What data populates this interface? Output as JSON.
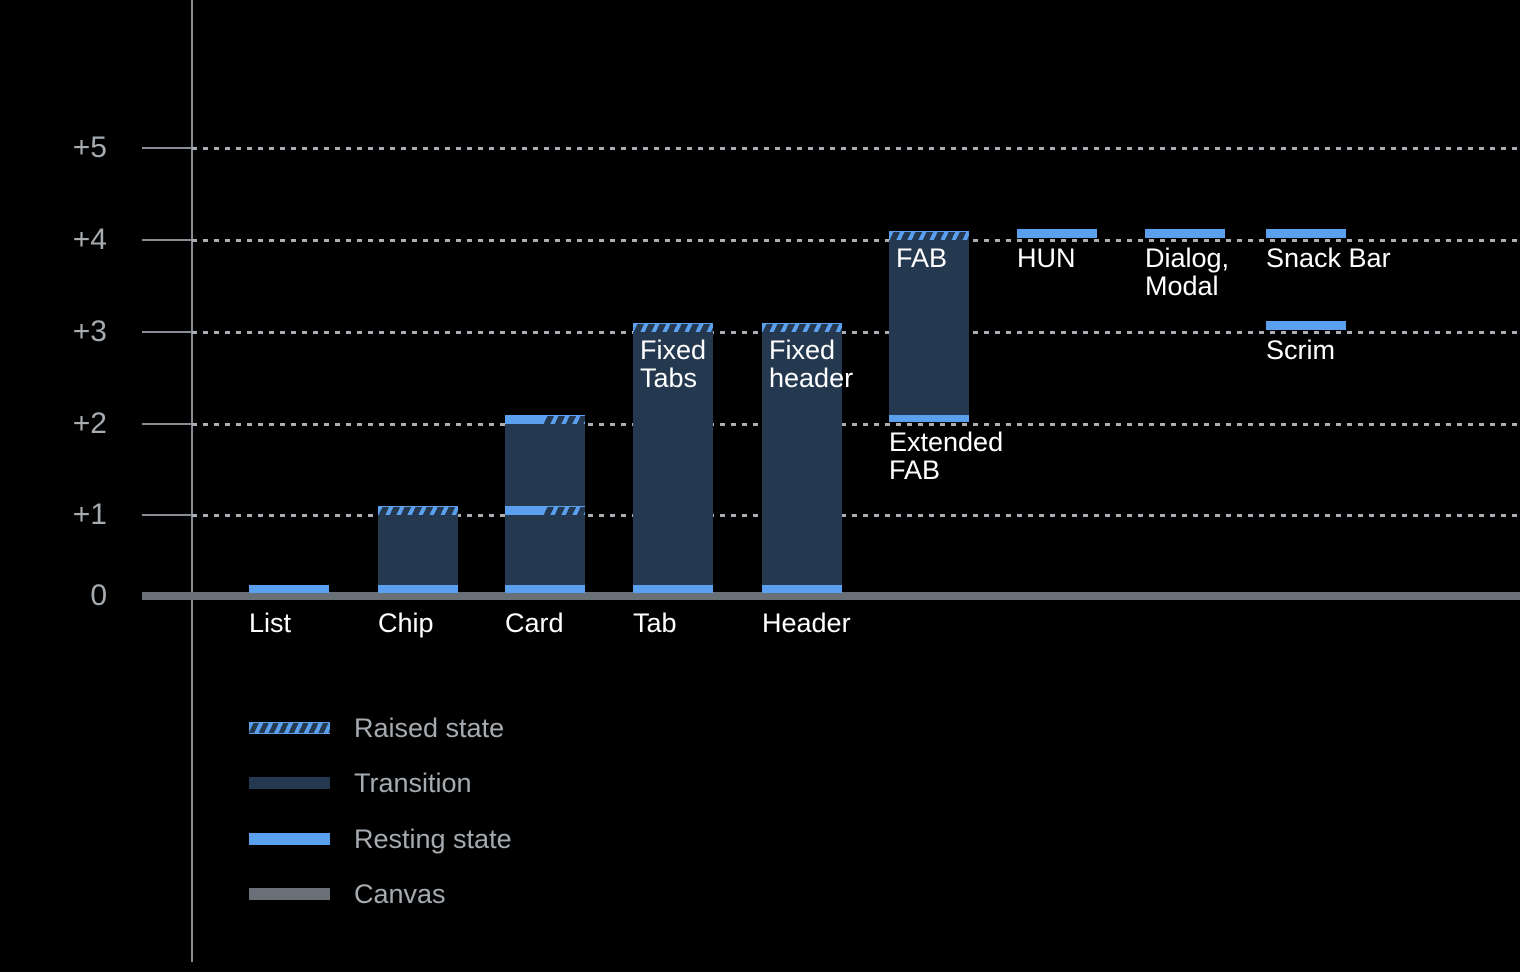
{
  "colors": {
    "background": "#000000",
    "resting": "#5B9FEF",
    "transition": "#243850",
    "canvas": "#6A7078",
    "axis": "#878D93",
    "grid_dot": "#A9AFB5",
    "tick_label": "#A6ABB0",
    "legend_label": "#A6ABB0",
    "bar_label": "#FFFFFF"
  },
  "chart_data": {
    "type": "bar",
    "title": "",
    "y_axis": {
      "range": [
        0,
        5.5
      ],
      "gridlines": "dotted",
      "ticks": [
        {
          "value": 0,
          "label": "0"
        },
        {
          "value": 1,
          "label": "+1"
        },
        {
          "value": 2,
          "label": "+2"
        },
        {
          "value": 3,
          "label": "+3"
        },
        {
          "value": 4,
          "label": "+4"
        },
        {
          "value": 5,
          "label": "+5"
        }
      ]
    },
    "legend": [
      {
        "kind": "raised",
        "label": "Raised state"
      },
      {
        "kind": "transition",
        "label": "Transition"
      },
      {
        "kind": "resting",
        "label": "Resting state"
      },
      {
        "kind": "canvas",
        "label": "Canvas"
      }
    ],
    "bars": [
      {
        "name": "List",
        "col": 0,
        "below_label": "List",
        "segments": [
          {
            "kind": "resting",
            "from": 0,
            "to": 0.1
          }
        ]
      },
      {
        "name": "Chip",
        "col": 1,
        "below_label": "Chip",
        "segments": [
          {
            "kind": "resting",
            "from": 0,
            "to": 0.1
          },
          {
            "kind": "transition",
            "from": 0.1,
            "to": 1
          },
          {
            "kind": "raised",
            "from": 1,
            "to": 1.1
          }
        ]
      },
      {
        "name": "Card",
        "col": 2,
        "below_label": "Card",
        "segments": [
          {
            "kind": "resting",
            "from": 0,
            "to": 0.1
          },
          {
            "kind": "transition",
            "from": 0.1,
            "to": 1
          },
          {
            "kind": "resting+raised",
            "from": 1,
            "to": 1.1
          },
          {
            "kind": "transition",
            "from": 1.1,
            "to": 2
          },
          {
            "kind": "resting+raised",
            "from": 2,
            "to": 2.1
          }
        ]
      },
      {
        "name": "Tab",
        "col": 3,
        "below_label": "Tab",
        "inside_label": "Fixed\nTabs",
        "segments": [
          {
            "kind": "resting",
            "from": 0,
            "to": 0.1
          },
          {
            "kind": "transition",
            "from": 0.1,
            "to": 3
          },
          {
            "kind": "raised",
            "from": 3,
            "to": 3.1
          }
        ]
      },
      {
        "name": "Header",
        "col": 4,
        "below_label": "Header",
        "inside_label": "Fixed\nheader",
        "segments": [
          {
            "kind": "resting",
            "from": 0,
            "to": 0.1
          },
          {
            "kind": "transition",
            "from": 0.1,
            "to": 3
          },
          {
            "kind": "raised",
            "from": 3,
            "to": 3.1
          }
        ]
      },
      {
        "name": "Extended FAB",
        "col": 5,
        "inside_label": "FAB",
        "base_label": "Extended\nFAB",
        "segments": [
          {
            "kind": "resting",
            "from": 2,
            "to": 2.1
          },
          {
            "kind": "transition",
            "from": 2.1,
            "to": 4
          },
          {
            "kind": "raised",
            "from": 4,
            "to": 4.1
          }
        ]
      },
      {
        "name": "HUN",
        "col": 6,
        "base_label": "HUN",
        "segments": [
          {
            "kind": "resting",
            "from": 4,
            "to": 4.1
          }
        ]
      },
      {
        "name": "Dialog, Modal",
        "col": 7,
        "base_label": "Dialog,\nModal",
        "segments": [
          {
            "kind": "resting",
            "from": 4,
            "to": 4.1
          }
        ]
      },
      {
        "name": "Snack Bar",
        "col": 8,
        "base_label": "Snack Bar",
        "segments": [
          {
            "kind": "resting",
            "from": 4,
            "to": 4.1
          }
        ]
      },
      {
        "name": "Scrim",
        "col": 8,
        "base_label": "Scrim",
        "segments": [
          {
            "kind": "resting",
            "from": 3,
            "to": 3.1
          }
        ]
      }
    ]
  }
}
